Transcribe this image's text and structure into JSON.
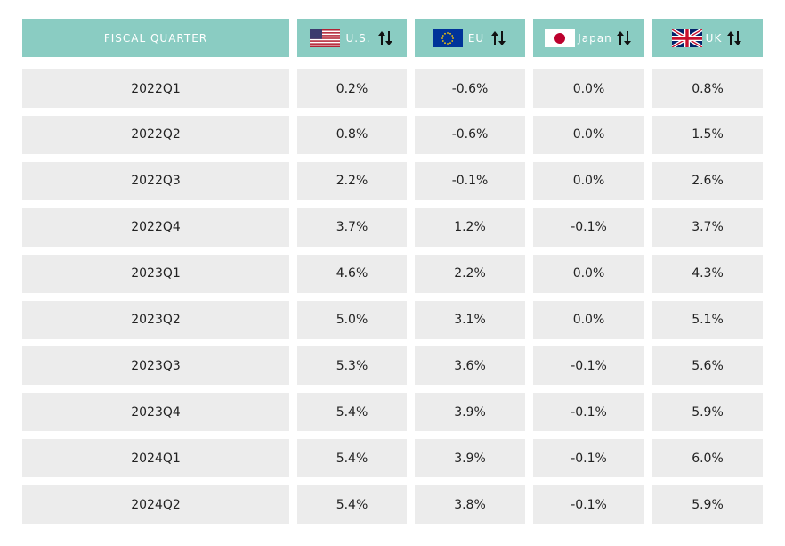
{
  "table": {
    "header": [
      "FISCAL QUARTER",
      "U.S.",
      "EU",
      "Japan",
      "UK"
    ],
    "rows": [
      [
        "2022Q1",
        "0.2%",
        "-0.6%",
        "0.0%",
        "0.8%"
      ],
      [
        "2022Q2",
        "0.8%",
        "-0.6%",
        "0.0%",
        "1.5%"
      ],
      [
        "2022Q3",
        "2.2%",
        "-0.1%",
        "0.0%",
        "2.6%"
      ],
      [
        "2022Q4",
        "3.7%",
        "1.2%",
        "-0.1%",
        "3.7%"
      ],
      [
        "2023Q1",
        "4.6%",
        "2.2%",
        "0.0%",
        "4.3%"
      ],
      [
        "2023Q2",
        "5.0%",
        "3.1%",
        "0.0%",
        "5.1%"
      ],
      [
        "2023Q3",
        "5.3%",
        "3.6%",
        "-0.1%",
        "5.6%"
      ],
      [
        "2023Q4",
        "5.4%",
        "3.9%",
        "-0.1%",
        "5.9%"
      ],
      [
        "2024Q1",
        "5.4%",
        "3.9%",
        "-0.1%",
        "6.0%"
      ],
      [
        "2024Q2",
        "5.4%",
        "3.8%",
        "-0.1%",
        "5.9%"
      ]
    ]
  }
}
